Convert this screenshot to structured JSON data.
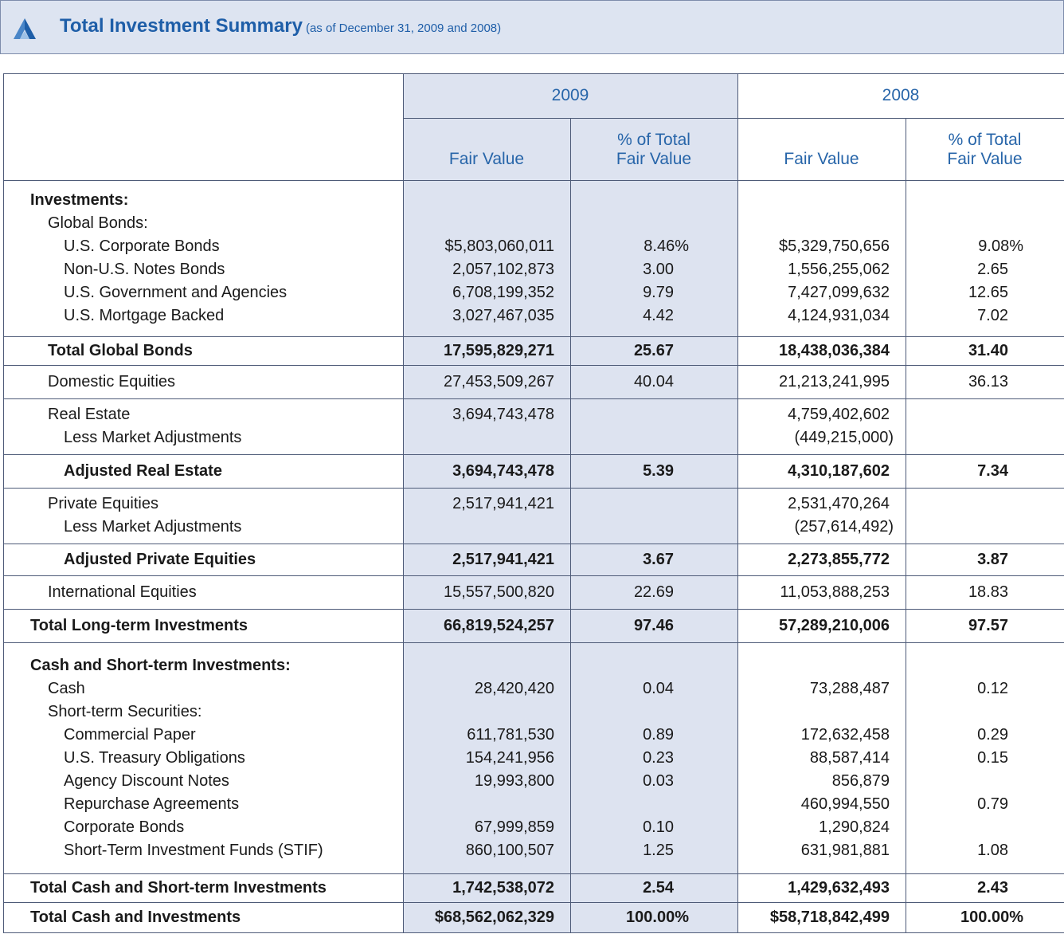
{
  "header": {
    "title": "Total Investment Summary",
    "subtitle": "(as of December 31, 2009 and 2008)"
  },
  "table": {
    "years": [
      "2009",
      "2008"
    ],
    "columns": [
      "Fair Value",
      "% of Total Fair Value",
      "Fair Value",
      "% of Total Fair Value"
    ],
    "groups": [
      {
        "rows": [
          [
            "Investments:",
            null,
            null,
            null,
            null
          ],
          [
            "Global Bonds:",
            null,
            null,
            null,
            null
          ],
          [
            "U.S. Corporate Bonds",
            "$5,803,060,011",
            "8.46%",
            "$5,329,750,656",
            "9.08%"
          ],
          [
            "Non-U.S. Notes Bonds",
            "2,057,102,873",
            "3.00",
            "1,556,255,062",
            "2.65"
          ],
          [
            "U.S. Government and Agencies",
            "6,708,199,352",
            "9.79",
            "7,427,099,632",
            "12.65"
          ],
          [
            "U.S. Mortgage Backed",
            "3,027,467,035",
            "4.42",
            "4,124,931,034",
            "7.02"
          ]
        ]
      },
      {
        "rows": [
          [
            "Total Global Bonds",
            "17,595,829,271",
            "25.67",
            "18,438,036,384",
            "31.40"
          ]
        ]
      },
      {
        "rows": [
          [
            "Domestic Equities",
            "27,453,509,267",
            "40.04",
            "21,213,241,995",
            "36.13"
          ]
        ]
      },
      {
        "rows": [
          [
            "Real Estate",
            "3,694,743,478",
            null,
            "4,759,402,602",
            null
          ],
          [
            "Less Market Adjustments",
            null,
            null,
            "(449,215,000)",
            null
          ]
        ]
      },
      {
        "rows": [
          [
            "Adjusted Real Estate",
            "3,694,743,478",
            "5.39",
            "4,310,187,602",
            "7.34"
          ]
        ]
      },
      {
        "rows": [
          [
            "Private Equities",
            "2,517,941,421",
            null,
            "2,531,470,264",
            null
          ],
          [
            "Less Market Adjustments",
            null,
            null,
            "(257,614,492)",
            null
          ]
        ]
      },
      {
        "rows": [
          [
            "Adjusted Private Equities",
            "2,517,941,421",
            "3.67",
            "2,273,855,772",
            "3.87"
          ]
        ]
      },
      {
        "rows": [
          [
            "International Equities",
            "15,557,500,820",
            "22.69",
            "11,053,888,253",
            "18.83"
          ]
        ]
      },
      {
        "rows": [
          [
            "Total Long-term Investments",
            "66,819,524,257",
            "97.46",
            "57,289,210,006",
            "97.57"
          ]
        ]
      },
      {
        "rows": [
          [
            "Cash and Short-term Investments:",
            null,
            null,
            null,
            null
          ],
          [
            "Cash",
            "28,420,420",
            "0.04",
            "73,288,487",
            "0.12"
          ],
          [
            "Short-term Securities:",
            null,
            null,
            null,
            null
          ],
          [
            "Commercial Paper",
            "611,781,530",
            "0.89",
            "172,632,458",
            "0.29"
          ],
          [
            "U.S. Treasury Obligations",
            "154,241,956",
            "0.23",
            "88,587,414",
            "0.15"
          ],
          [
            "Agency Discount Notes",
            "19,993,800",
            "0.03",
            "856,879",
            null
          ],
          [
            "Repurchase Agreements",
            null,
            null,
            "460,994,550",
            "0.79"
          ],
          [
            "Corporate Bonds",
            "67,999,859",
            "0.10",
            "1,290,824",
            null
          ],
          [
            "Short-Term Investment Funds (STIF)",
            "860,100,507",
            "1.25",
            "631,981,881",
            "1.08"
          ]
        ]
      },
      {
        "rows": [
          [
            "Total Cash and Short-term Investments",
            "1,742,538,072",
            "2.54",
            "1,429,632,493",
            "2.43"
          ]
        ]
      },
      {
        "rows": [
          [
            "Total Cash and Investments",
            "$68,562,062,329",
            "100.00%",
            "$58,718,842,499",
            "100.00%"
          ]
        ]
      }
    ]
  }
}
